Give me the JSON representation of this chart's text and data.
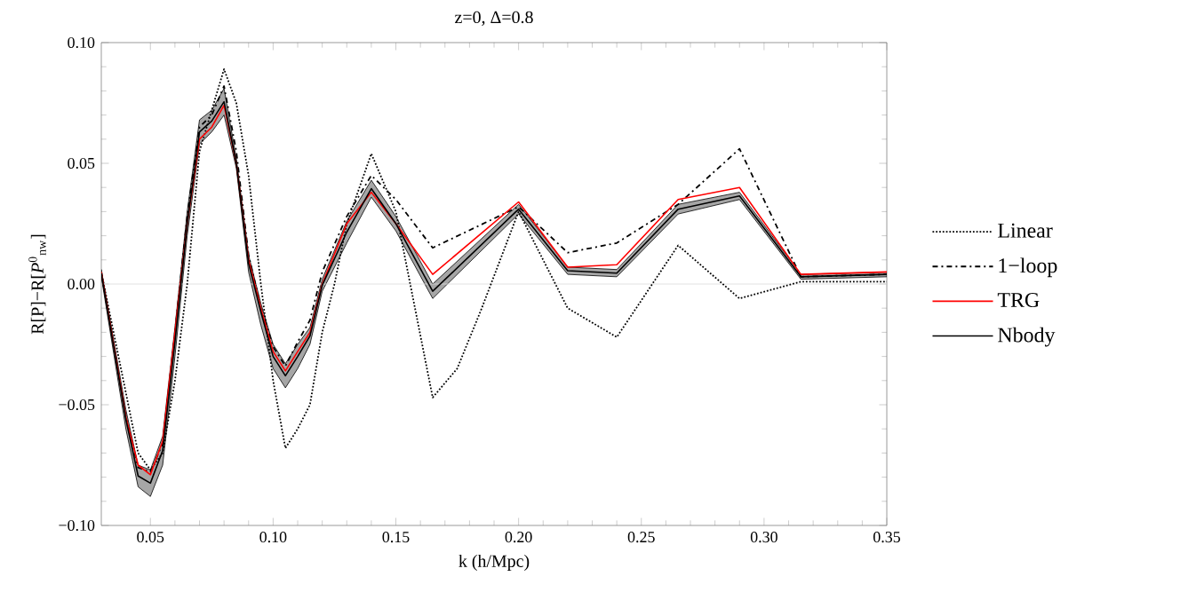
{
  "chart_data": {
    "type": "line",
    "title": "z=0,  Δ=0.8",
    "xlabel": "k (h/Mpc)",
    "ylabel": "R[P]−R[*P*$^{0}$$_{nw}$]",
    "xlim": [
      0.03,
      0.35
    ],
    "ylim": [
      -0.1,
      0.1
    ],
    "xticks": [
      {
        "value": 0.05,
        "label": "0.05"
      },
      {
        "value": 0.1,
        "label": "0.10"
      },
      {
        "value": 0.15,
        "label": "0.15"
      },
      {
        "value": 0.2,
        "label": "0.20"
      },
      {
        "value": 0.25,
        "label": "0.25"
      },
      {
        "value": 0.3,
        "label": "0.30"
      },
      {
        "value": 0.35,
        "label": "0.35"
      }
    ],
    "yticks": [
      {
        "value": -0.1,
        "label": "−0.10"
      },
      {
        "value": -0.05,
        "label": "−0.05"
      },
      {
        "value": 0,
        "label": "0.00"
      },
      {
        "value": 0.05,
        "label": "0.05"
      },
      {
        "value": 0.1,
        "label": "0.10"
      }
    ],
    "legend": "right",
    "ref_lines": [
      {
        "axis": "y",
        "value": 0,
        "color": "#d9d9d9"
      }
    ],
    "series": [
      {
        "name": "Linear",
        "color": "#000000",
        "line_style": "dotted",
        "x": [
          0.03,
          0.04,
          0.045,
          0.05,
          0.055,
          0.06,
          0.065,
          0.07,
          0.08,
          0.085,
          0.09,
          0.095,
          0.1,
          0.105,
          0.11,
          0.115,
          0.12,
          0.125,
          0.13,
          0.14,
          0.15,
          0.165,
          0.175,
          0.185,
          0.2,
          0.21,
          0.22,
          0.24,
          0.265,
          0.29,
          0.315,
          0.35
        ],
        "values": [
          0.005,
          -0.045,
          -0.07,
          -0.077,
          -0.07,
          -0.04,
          0.0,
          0.055,
          0.089,
          0.075,
          0.045,
          0.0,
          -0.04,
          -0.068,
          -0.06,
          -0.05,
          -0.02,
          0.0,
          0.025,
          0.054,
          0.03,
          -0.047,
          -0.035,
          -0.01,
          0.03,
          0.01,
          -0.01,
          -0.022,
          0.016,
          -0.006,
          0.001,
          0.001
        ]
      },
      {
        "name": "1−loop",
        "color": "#000000",
        "line_style": "dashdotted",
        "x": [
          0.03,
          0.04,
          0.045,
          0.05,
          0.055,
          0.06,
          0.065,
          0.07,
          0.075,
          0.08,
          0.085,
          0.09,
          0.095,
          0.1,
          0.105,
          0.11,
          0.115,
          0.12,
          0.13,
          0.14,
          0.15,
          0.165,
          0.2,
          0.22,
          0.24,
          0.265,
          0.29,
          0.315,
          0.35
        ],
        "values": [
          0.005,
          -0.055,
          -0.076,
          -0.078,
          -0.066,
          -0.02,
          0.028,
          0.065,
          0.07,
          0.082,
          0.055,
          0.012,
          -0.01,
          -0.026,
          -0.034,
          -0.024,
          -0.015,
          0.005,
          0.028,
          0.045,
          0.035,
          0.015,
          0.032,
          0.013,
          0.017,
          0.033,
          0.056,
          0.003,
          0.004
        ]
      },
      {
        "name": "TRG",
        "color": "#ff0000",
        "line_style": "solid",
        "x": [
          0.03,
          0.04,
          0.045,
          0.05,
          0.055,
          0.06,
          0.065,
          0.07,
          0.075,
          0.08,
          0.085,
          0.09,
          0.095,
          0.1,
          0.105,
          0.11,
          0.115,
          0.12,
          0.13,
          0.14,
          0.15,
          0.165,
          0.2,
          0.22,
          0.24,
          0.265,
          0.29,
          0.315,
          0.35
        ],
        "values": [
          0.005,
          -0.055,
          -0.075,
          -0.079,
          -0.065,
          -0.02,
          0.025,
          0.06,
          0.065,
          0.074,
          0.05,
          0.01,
          -0.01,
          -0.028,
          -0.036,
          -0.028,
          -0.02,
          0.0,
          0.025,
          0.038,
          0.025,
          0.004,
          0.034,
          0.007,
          0.008,
          0.035,
          0.04,
          0.004,
          0.005
        ]
      },
      {
        "name": "Nbody",
        "color": "#000000",
        "line_style": "solid",
        "x": [
          0.03,
          0.04,
          0.045,
          0.05,
          0.055,
          0.06,
          0.065,
          0.07,
          0.075,
          0.08,
          0.085,
          0.09,
          0.095,
          0.1,
          0.105,
          0.11,
          0.115,
          0.12,
          0.13,
          0.14,
          0.15,
          0.165,
          0.2,
          0.22,
          0.24,
          0.265,
          0.29,
          0.315,
          0.35
        ],
        "values": [
          0.0045,
          -0.056,
          -0.0795,
          -0.0825,
          -0.069,
          -0.024,
          0.025,
          0.063,
          0.0675,
          0.0755,
          0.05,
          0.0085,
          -0.0115,
          -0.03,
          -0.038,
          -0.03,
          -0.0215,
          -0.0005,
          0.0215,
          0.0395,
          0.025,
          -0.003,
          0.031,
          0.0055,
          0.0045,
          0.031,
          0.0365,
          0.003,
          0.004
        ],
        "lower": [
          0.003,
          -0.06,
          -0.084,
          -0.088,
          -0.075,
          -0.03,
          0.02,
          0.058,
          0.063,
          0.07,
          0.048,
          0.005,
          -0.017,
          -0.035,
          -0.043,
          -0.035,
          -0.025,
          -0.003,
          0.017,
          0.036,
          0.022,
          -0.006,
          0.029,
          0.004,
          0.003,
          0.029,
          0.035,
          0.002,
          0.003
        ],
        "upper": [
          0.006,
          -0.052,
          -0.075,
          -0.077,
          -0.063,
          -0.018,
          0.03,
          0.068,
          0.072,
          0.081,
          0.052,
          0.012,
          -0.008,
          -0.025,
          -0.033,
          -0.025,
          -0.018,
          0.002,
          0.026,
          0.043,
          0.028,
          0.0,
          0.033,
          0.007,
          0.006,
          0.033,
          0.038,
          0.004,
          0.005
        ]
      }
    ]
  }
}
